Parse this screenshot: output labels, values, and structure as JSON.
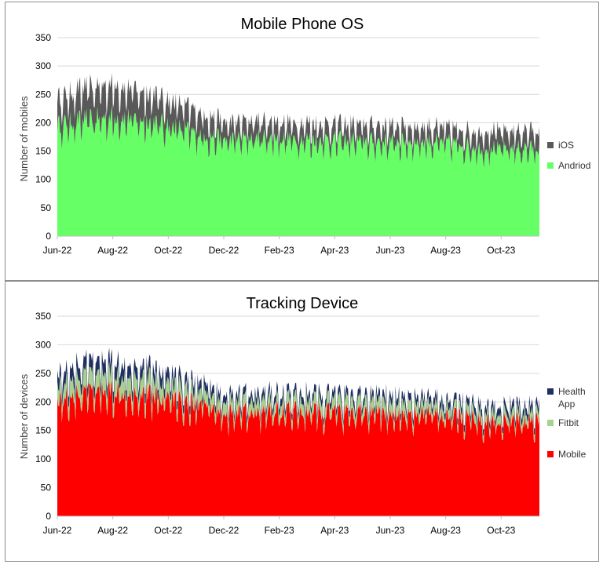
{
  "chart_data": [
    {
      "type": "area",
      "stacked": true,
      "title": "Mobile Phone OS",
      "ylabel": "Number of mobiles",
      "xlabel": "",
      "ylim": [
        0,
        350
      ],
      "yticks": [
        "0",
        "50",
        "100",
        "150",
        "200",
        "250",
        "300",
        "350"
      ],
      "xtick_labels": [
        "Jun-22",
        "Aug-22",
        "Oct-22",
        "Dec-22",
        "Feb-23",
        "Apr-23",
        "Jun-23",
        "Aug-23",
        "Oct-23"
      ],
      "x_months": [
        "Jun-22",
        "Jul-22",
        "Aug-22",
        "Sep-22",
        "Oct-22",
        "Nov-22",
        "Dec-22",
        "Jan-23",
        "Feb-23",
        "Mar-23",
        "Apr-23",
        "May-23",
        "Jun-23",
        "Jul-23",
        "Aug-23",
        "Sep-23",
        "Oct-23",
        "Nov-23"
      ],
      "series": [
        {
          "name": "Andriod",
          "color": "#66ff66",
          "values": [
            190,
            200,
            205,
            200,
            190,
            175,
            165,
            170,
            168,
            166,
            165,
            163,
            162,
            163,
            160,
            150,
            152,
            150
          ]
        },
        {
          "name": "iOS",
          "color": "#595959",
          "values": [
            45,
            55,
            55,
            50,
            45,
            40,
            30,
            30,
            28,
            28,
            28,
            28,
            28,
            26,
            25,
            30,
            30,
            30
          ]
        }
      ],
      "legend_order": [
        "iOS",
        "Andriod"
      ],
      "legend_position": "right"
    },
    {
      "type": "area",
      "stacked": true,
      "title": "Tracking Device",
      "ylabel": "Number of devices",
      "xlabel": "",
      "ylim": [
        0,
        350
      ],
      "yticks": [
        "0",
        "50",
        "100",
        "150",
        "200",
        "250",
        "300",
        "350"
      ],
      "xtick_labels": [
        "Jun-22",
        "Aug-22",
        "Oct-22",
        "Dec-22",
        "Feb-23",
        "Apr-23",
        "Jun-23",
        "Aug-23",
        "Oct-23"
      ],
      "x_months": [
        "Jun-22",
        "Jul-22",
        "Aug-22",
        "Sep-22",
        "Oct-22",
        "Nov-22",
        "Dec-22",
        "Jan-23",
        "Feb-23",
        "Mar-23",
        "Apr-23",
        "May-23",
        "Jun-23",
        "Jul-23",
        "Aug-23",
        "Sep-23",
        "Oct-23",
        "Nov-23"
      ],
      "series": [
        {
          "name": "Mobile",
          "color": "#ff0000",
          "values": [
            200,
            210,
            215,
            210,
            200,
            190,
            175,
            180,
            180,
            178,
            176,
            175,
            175,
            174,
            170,
            162,
            163,
            162
          ]
        },
        {
          "name": "Fitbit",
          "color": "#a9d18e",
          "values": [
            25,
            30,
            30,
            28,
            25,
            22,
            20,
            20,
            20,
            20,
            20,
            20,
            20,
            18,
            15,
            15,
            15,
            15
          ]
        },
        {
          "name": "Health App",
          "color": "#1f2f5f",
          "values": [
            20,
            22,
            22,
            20,
            18,
            15,
            12,
            12,
            12,
            12,
            12,
            12,
            12,
            12,
            12,
            12,
            12,
            12
          ]
        }
      ],
      "legend_order": [
        "Health App",
        "Fitbit",
        "Mobile"
      ],
      "legend_position": "right"
    }
  ]
}
